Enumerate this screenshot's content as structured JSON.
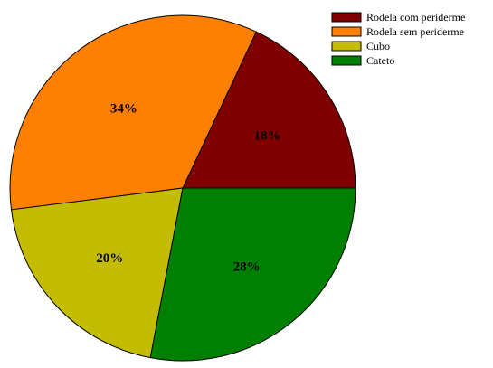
{
  "chart_data": {
    "type": "pie",
    "title": "",
    "categories": [
      "Rodela com periderme",
      "Rodela sem periderme",
      "Cubo",
      "Cateto"
    ],
    "values": [
      18,
      34,
      20,
      28
    ],
    "labels": [
      "18%",
      "34%",
      "20%",
      "28%"
    ],
    "colors": [
      "#800000",
      "#FF8000",
      "#C4BC00",
      "#008000"
    ],
    "start_angle_deg": 0,
    "direction": "counterclockwise",
    "legend_position": "top-right",
    "grid": false
  }
}
